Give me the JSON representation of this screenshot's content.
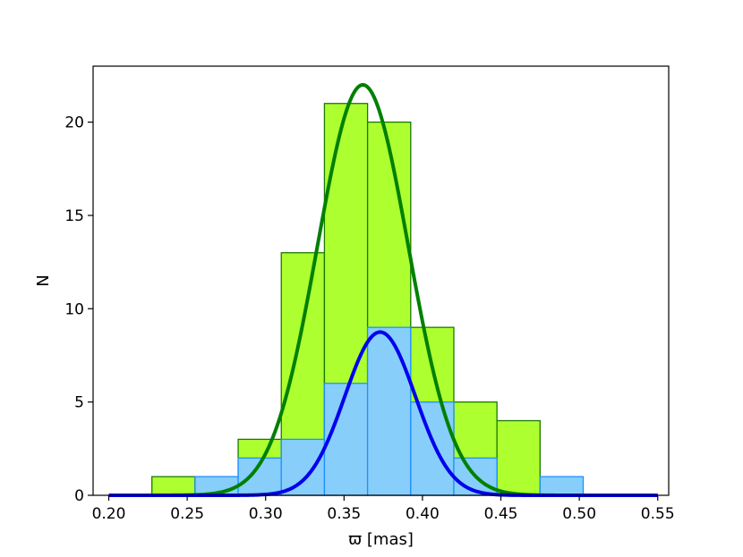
{
  "chart_data": {
    "type": "bar",
    "title": "",
    "xlabel": "ϖ [mas]",
    "ylabel": "N",
    "xlim": [
      0.19,
      0.557
    ],
    "ylim": [
      0,
      23
    ],
    "xticks": [
      "0.20",
      "0.25",
      "0.30",
      "0.35",
      "0.40",
      "0.45",
      "0.50",
      "0.55"
    ],
    "yticks": [
      "0",
      "5",
      "10",
      "15",
      "20"
    ],
    "grid": false,
    "legend": "none",
    "series": [
      {
        "kind": "histogram",
        "color": "#adff2f",
        "edge_color": "#1a7a00",
        "bins": [
          {
            "x0": 0.2275,
            "x1": 0.255,
            "value": 1
          },
          {
            "x0": 0.255,
            "x1": 0.2825,
            "value": 1
          },
          {
            "x0": 0.2825,
            "x1": 0.31,
            "value": 3
          },
          {
            "x0": 0.31,
            "x1": 0.3375,
            "value": 13
          },
          {
            "x0": 0.3375,
            "x1": 0.365,
            "value": 21
          },
          {
            "x0": 0.365,
            "x1": 0.3925,
            "value": 20
          },
          {
            "x0": 0.3925,
            "x1": 0.42,
            "value": 9
          },
          {
            "x0": 0.42,
            "x1": 0.4475,
            "value": 5
          },
          {
            "x0": 0.4475,
            "x1": 0.475,
            "value": 4
          }
        ]
      },
      {
        "kind": "histogram",
        "color": "#87cefa",
        "edge_color": "#1e90ff",
        "bins": [
          {
            "x0": 0.255,
            "x1": 0.2825,
            "value": 1
          },
          {
            "x0": 0.2825,
            "x1": 0.31,
            "value": 2
          },
          {
            "x0": 0.31,
            "x1": 0.3375,
            "value": 3
          },
          {
            "x0": 0.3375,
            "x1": 0.365,
            "value": 6
          },
          {
            "x0": 0.365,
            "x1": 0.3925,
            "value": 9
          },
          {
            "x0": 0.3925,
            "x1": 0.42,
            "value": 5
          },
          {
            "x0": 0.42,
            "x1": 0.4475,
            "value": 2
          },
          {
            "x0": 0.475,
            "x1": 0.5025,
            "value": 1
          }
        ]
      },
      {
        "kind": "gaussian-curve",
        "color": "#008000",
        "amplitude": 22.0,
        "mean": 0.362,
        "sigma": 0.029,
        "x_range": [
          0.2,
          0.55
        ]
      },
      {
        "kind": "gaussian-curve",
        "color": "#0000ee",
        "amplitude": 8.75,
        "mean": 0.373,
        "sigma": 0.0225,
        "x_range": [
          0.2,
          0.55
        ]
      }
    ]
  }
}
